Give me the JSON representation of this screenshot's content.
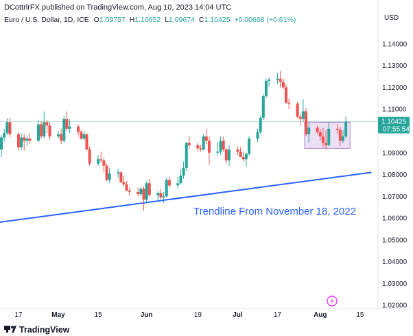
{
  "header": {
    "author_line": "DCottrlrFX published on TradingView.com, Aug 10, 2023 14:04 UTC",
    "symbol": "Euro / U.S. Dollar, 1D, ICE",
    "ohlc": [
      {
        "label": "O",
        "value": "1.09757"
      },
      {
        "label": "H",
        "value": "1.10652"
      },
      {
        "label": "L",
        "value": "1.09674"
      },
      {
        "label": "C",
        "value": "1.10425"
      }
    ],
    "change": "+0.00668 (+0.61%)"
  },
  "price_axis": {
    "currency": "USD",
    "last_price": "1.10425",
    "countdown": "07:55:54"
  },
  "annotation": "Trendline From November 18, 2022",
  "footer": {
    "brand": "TradingView"
  },
  "colors": {
    "up": "#26a69a",
    "down": "#ef5350",
    "trendline": "#2962ff",
    "box_fill": "#e7d4f2",
    "box_stroke": "#b08ad0",
    "last_price_line": "#a5d6c9",
    "label_text": "#2962ff"
  },
  "chart_data": {
    "type": "candlestick",
    "title": "Euro / U.S. Dollar, 1D, ICE",
    "ylabel": "USD",
    "ylim": [
      1.0185,
      1.1475
    ],
    "y_ticks": [
      "1.14000",
      "1.13000",
      "1.12000",
      "1.11000",
      "1.10000",
      "1.09000",
      "1.08000",
      "1.07000",
      "1.06000",
      "1.05000",
      "1.04000",
      "1.03000",
      "1.02000"
    ],
    "x_ticks": [
      {
        "label": "17",
        "date": "2023-04-17"
      },
      {
        "label": "May",
        "date": "2023-05-01"
      },
      {
        "label": "15",
        "date": "2023-05-15"
      },
      {
        "label": "Jun",
        "date": "2023-06-01"
      },
      {
        "label": "19",
        "date": "2023-06-19"
      },
      {
        "label": "Jul",
        "date": "2023-07-03"
      },
      {
        "label": "17",
        "date": "2023-07-17"
      },
      {
        "label": "Aug",
        "date": "2023-08-01"
      },
      {
        "label": "15",
        "date": "2023-08-15"
      }
    ],
    "candles": [
      {
        "date": "2023-04-10",
        "o": 1.088,
        "h": 1.093,
        "l": 1.087,
        "c": 1.0915
      },
      {
        "date": "2023-04-11",
        "o": 1.0915,
        "h": 1.098,
        "l": 1.088,
        "c": 1.097
      },
      {
        "date": "2023-04-12",
        "o": 1.097,
        "h": 1.101,
        "l": 1.095,
        "c": 1.099
      },
      {
        "date": "2023-04-13",
        "o": 1.099,
        "h": 1.106,
        "l": 1.098,
        "c": 1.104
      },
      {
        "date": "2023-04-14",
        "o": 1.104,
        "h": 1.106,
        "l": 1.097,
        "c": 1.0985
      },
      {
        "date": "2023-04-17",
        "o": 1.0985,
        "h": 1.0995,
        "l": 1.091,
        "c": 1.0925
      },
      {
        "date": "2023-04-18",
        "o": 1.0925,
        "h": 1.099,
        "l": 1.091,
        "c": 1.097
      },
      {
        "date": "2023-04-19",
        "o": 1.097,
        "h": 1.0985,
        "l": 1.091,
        "c": 1.0955
      },
      {
        "date": "2023-04-20",
        "o": 1.0955,
        "h": 1.098,
        "l": 1.093,
        "c": 1.0965
      },
      {
        "date": "2023-04-21",
        "o": 1.0965,
        "h": 1.099,
        "l": 1.094,
        "c": 1.0955
      },
      {
        "date": "2023-04-24",
        "o": 1.0955,
        "h": 1.105,
        "l": 1.095,
        "c": 1.103
      },
      {
        "date": "2023-04-25",
        "o": 1.103,
        "h": 1.1045,
        "l": 1.0965,
        "c": 1.0975
      },
      {
        "date": "2023-04-26",
        "o": 1.0975,
        "h": 1.109,
        "l": 1.0965,
        "c": 1.104
      },
      {
        "date": "2023-04-27",
        "o": 1.104,
        "h": 1.105,
        "l": 1.099,
        "c": 1.1025
      },
      {
        "date": "2023-04-28",
        "o": 1.1025,
        "h": 1.104,
        "l": 1.096,
        "c": 1.0975
      },
      {
        "date": "2023-05-01",
        "o": 1.0975,
        "h": 1.1,
        "l": 1.0965,
        "c": 1.0985
      },
      {
        "date": "2023-05-02",
        "o": 1.0985,
        "h": 1.101,
        "l": 1.094,
        "c": 1.0955
      },
      {
        "date": "2023-05-03",
        "o": 1.0955,
        "h": 1.107,
        "l": 1.0945,
        "c": 1.1055
      },
      {
        "date": "2023-05-04",
        "o": 1.1055,
        "h": 1.109,
        "l": 1.1,
        "c": 1.101
      },
      {
        "date": "2023-05-05",
        "o": 1.101,
        "h": 1.1055,
        "l": 1.099,
        "c": 1.102
      },
      {
        "date": "2023-05-08",
        "o": 1.102,
        "h": 1.103,
        "l": 1.098,
        "c": 1.0995
      },
      {
        "date": "2023-05-09",
        "o": 1.0995,
        "h": 1.1005,
        "l": 1.096,
        "c": 1.0965
      },
      {
        "date": "2023-05-10",
        "o": 1.0965,
        "h": 1.1,
        "l": 1.0955,
        "c": 1.0985
      },
      {
        "date": "2023-05-11",
        "o": 1.0985,
        "h": 1.099,
        "l": 1.091,
        "c": 1.0915
      },
      {
        "date": "2023-05-12",
        "o": 1.0915,
        "h": 1.093,
        "l": 1.084,
        "c": 1.085
      },
      {
        "date": "2023-05-15",
        "o": 1.085,
        "h": 1.089,
        "l": 1.084,
        "c": 1.087
      },
      {
        "date": "2023-05-16",
        "o": 1.087,
        "h": 1.0905,
        "l": 1.0855,
        "c": 1.0865
      },
      {
        "date": "2023-05-17",
        "o": 1.0865,
        "h": 1.0875,
        "l": 1.081,
        "c": 1.084
      },
      {
        "date": "2023-05-18",
        "o": 1.084,
        "h": 1.085,
        "l": 1.077,
        "c": 1.0775
      },
      {
        "date": "2023-05-19",
        "o": 1.0775,
        "h": 1.083,
        "l": 1.076,
        "c": 1.0805
      },
      {
        "date": "2023-05-22",
        "o": 1.0805,
        "h": 1.0825,
        "l": 1.0785,
        "c": 1.081
      },
      {
        "date": "2023-05-23",
        "o": 1.081,
        "h": 1.0815,
        "l": 1.076,
        "c": 1.0765
      },
      {
        "date": "2023-05-24",
        "o": 1.0765,
        "h": 1.0795,
        "l": 1.0745,
        "c": 1.0755
      },
      {
        "date": "2023-05-25",
        "o": 1.0755,
        "h": 1.077,
        "l": 1.073,
        "c": 1.0725
      },
      {
        "date": "2023-05-26",
        "o": 1.0725,
        "h": 1.074,
        "l": 1.0705,
        "c": 1.072
      },
      {
        "date": "2023-05-29",
        "o": 1.072,
        "h": 1.074,
        "l": 1.07,
        "c": 1.071
      },
      {
        "date": "2023-05-30",
        "o": 1.071,
        "h": 1.0745,
        "l": 1.07,
        "c": 1.0735
      },
      {
        "date": "2023-05-31",
        "o": 1.0735,
        "h": 1.0745,
        "l": 1.0635,
        "c": 1.0685
      },
      {
        "date": "2023-06-01",
        "o": 1.0685,
        "h": 1.077,
        "l": 1.067,
        "c": 1.076
      },
      {
        "date": "2023-06-02",
        "o": 1.076,
        "h": 1.078,
        "l": 1.07,
        "c": 1.0705
      },
      {
        "date": "2023-06-05",
        "o": 1.0705,
        "h": 1.0725,
        "l": 1.0675,
        "c": 1.0715
      },
      {
        "date": "2023-06-06",
        "o": 1.0715,
        "h": 1.0735,
        "l": 1.0685,
        "c": 1.0695
      },
      {
        "date": "2023-06-07",
        "o": 1.0695,
        "h": 1.072,
        "l": 1.067,
        "c": 1.07
      },
      {
        "date": "2023-06-08",
        "o": 1.07,
        "h": 1.0785,
        "l": 1.0695,
        "c": 1.0775
      },
      {
        "date": "2023-06-09",
        "o": 1.0775,
        "h": 1.079,
        "l": 1.074,
        "c": 1.075
      },
      {
        "date": "2023-06-12",
        "o": 1.075,
        "h": 1.079,
        "l": 1.0735,
        "c": 1.076
      },
      {
        "date": "2023-06-13",
        "o": 1.076,
        "h": 1.0825,
        "l": 1.0755,
        "c": 1.0795
      },
      {
        "date": "2023-06-14",
        "o": 1.0795,
        "h": 1.086,
        "l": 1.078,
        "c": 1.083
      },
      {
        "date": "2023-06-15",
        "o": 1.083,
        "h": 1.095,
        "l": 1.0815,
        "c": 1.0945
      },
      {
        "date": "2023-06-16",
        "o": 1.0945,
        "h": 1.0975,
        "l": 1.092,
        "c": 1.0935
      },
      {
        "date": "2023-06-19",
        "o": 1.0935,
        "h": 1.0945,
        "l": 1.0905,
        "c": 1.092
      },
      {
        "date": "2023-06-20",
        "o": 1.092,
        "h": 1.0935,
        "l": 1.0905,
        "c": 1.0915
      },
      {
        "date": "2023-06-21",
        "o": 1.0915,
        "h": 1.0985,
        "l": 1.091,
        "c": 1.0975
      },
      {
        "date": "2023-06-22",
        "o": 1.0975,
        "h": 1.101,
        "l": 1.094,
        "c": 1.0955
      },
      {
        "date": "2023-06-23",
        "o": 1.0955,
        "h": 1.0975,
        "l": 1.0845,
        "c": 1.09
      },
      {
        "date": "2023-06-26",
        "o": 1.09,
        "h": 1.095,
        "l": 1.0885,
        "c": 1.0905
      },
      {
        "date": "2023-06-27",
        "o": 1.0905,
        "h": 1.0975,
        "l": 1.089,
        "c": 1.0955
      },
      {
        "date": "2023-06-28",
        "o": 1.0955,
        "h": 1.0975,
        "l": 1.0905,
        "c": 1.0915
      },
      {
        "date": "2023-06-29",
        "o": 1.0915,
        "h": 1.0925,
        "l": 1.085,
        "c": 1.0865
      },
      {
        "date": "2023-06-30",
        "o": 1.0865,
        "h": 1.0935,
        "l": 1.084,
        "c": 1.0915
      },
      {
        "date": "2023-07-03",
        "o": 1.0915,
        "h": 1.093,
        "l": 1.089,
        "c": 1.0905
      },
      {
        "date": "2023-07-04",
        "o": 1.0905,
        "h": 1.0925,
        "l": 1.088,
        "c": 1.088
      },
      {
        "date": "2023-07-05",
        "o": 1.088,
        "h": 1.0905,
        "l": 1.086,
        "c": 1.087
      },
      {
        "date": "2023-07-06",
        "o": 1.087,
        "h": 1.09,
        "l": 1.0835,
        "c": 1.0895
      },
      {
        "date": "2023-07-07",
        "o": 1.0895,
        "h": 1.0975,
        "l": 1.0885,
        "c": 1.0965
      },
      {
        "date": "2023-07-10",
        "o": 1.0965,
        "h": 1.101,
        "l": 1.095,
        "c": 1.0995
      },
      {
        "date": "2023-07-11",
        "o": 1.0995,
        "h": 1.107,
        "l": 1.0985,
        "c": 1.106
      },
      {
        "date": "2023-07-12",
        "o": 1.106,
        "h": 1.117,
        "l": 1.105,
        "c": 1.116
      },
      {
        "date": "2023-07-13",
        "o": 1.116,
        "h": 1.124,
        "l": 1.115,
        "c": 1.123
      },
      {
        "date": "2023-07-14",
        "o": 1.123,
        "h": 1.1245,
        "l": 1.1205,
        "c": 1.1235
      },
      {
        "date": "2023-07-17",
        "o": 1.1235,
        "h": 1.1265,
        "l": 1.1215,
        "c": 1.124
      },
      {
        "date": "2023-07-18",
        "o": 1.124,
        "h": 1.1275,
        "l": 1.12,
        "c": 1.1225
      },
      {
        "date": "2023-07-19",
        "o": 1.1225,
        "h": 1.124,
        "l": 1.119,
        "c": 1.12
      },
      {
        "date": "2023-07-20",
        "o": 1.12,
        "h": 1.1215,
        "l": 1.1125,
        "c": 1.113
      },
      {
        "date": "2023-07-21",
        "o": 1.113,
        "h": 1.115,
        "l": 1.11,
        "c": 1.1125
      },
      {
        "date": "2023-07-24",
        "o": 1.1125,
        "h": 1.1135,
        "l": 1.106,
        "c": 1.1065
      },
      {
        "date": "2023-07-25",
        "o": 1.1065,
        "h": 1.108,
        "l": 1.1025,
        "c": 1.1055
      },
      {
        "date": "2023-07-26",
        "o": 1.1055,
        "h": 1.1145,
        "l": 1.104,
        "c": 1.109
      },
      {
        "date": "2023-07-27",
        "o": 1.109,
        "h": 1.1105,
        "l": 1.0975,
        "c": 1.0985
      },
      {
        "date": "2023-07-28",
        "o": 1.0985,
        "h": 1.1035,
        "l": 1.0945,
        "c": 1.1015
      },
      {
        "date": "2023-07-31",
        "o": 1.1015,
        "h": 1.1025,
        "l": 1.0985,
        "c": 1.0995
      },
      {
        "date": "2023-08-01",
        "o": 1.0995,
        "h": 1.101,
        "l": 1.0955,
        "c": 1.0975
      },
      {
        "date": "2023-08-02",
        "o": 1.0975,
        "h": 1.1015,
        "l": 1.0925,
        "c": 1.0945
      },
      {
        "date": "2023-08-03",
        "o": 1.0945,
        "h": 1.1005,
        "l": 1.0915,
        "c": 1.0935
      },
      {
        "date": "2023-08-04",
        "o": 1.0935,
        "h": 1.104,
        "l": 1.093,
        "c": 1.101
      },
      {
        "date": "2023-08-07",
        "o": 1.101,
        "h": 1.103,
        "l": 1.0985,
        "c": 1.1005
      },
      {
        "date": "2023-08-08",
        "o": 1.1005,
        "h": 1.102,
        "l": 1.093,
        "c": 1.0955
      },
      {
        "date": "2023-08-09",
        "o": 1.0955,
        "h": 1.1005,
        "l": 1.0945,
        "c": 1.0975
      },
      {
        "date": "2023-08-10",
        "o": 1.0975,
        "h": 1.1065,
        "l": 1.0967,
        "c": 1.1043
      }
    ],
    "trendline": {
      "from": {
        "date": "2022-11-18",
        "y": 1.033
      },
      "to": {
        "date": "2023-08-19",
        "y": 1.081
      }
    },
    "range_box": {
      "from": "2023-07-27",
      "to": "2023-08-11",
      "top": 1.104,
      "bottom": 1.092
    },
    "last_price_line": 1.10425,
    "grid": false,
    "legend": "top-left"
  }
}
